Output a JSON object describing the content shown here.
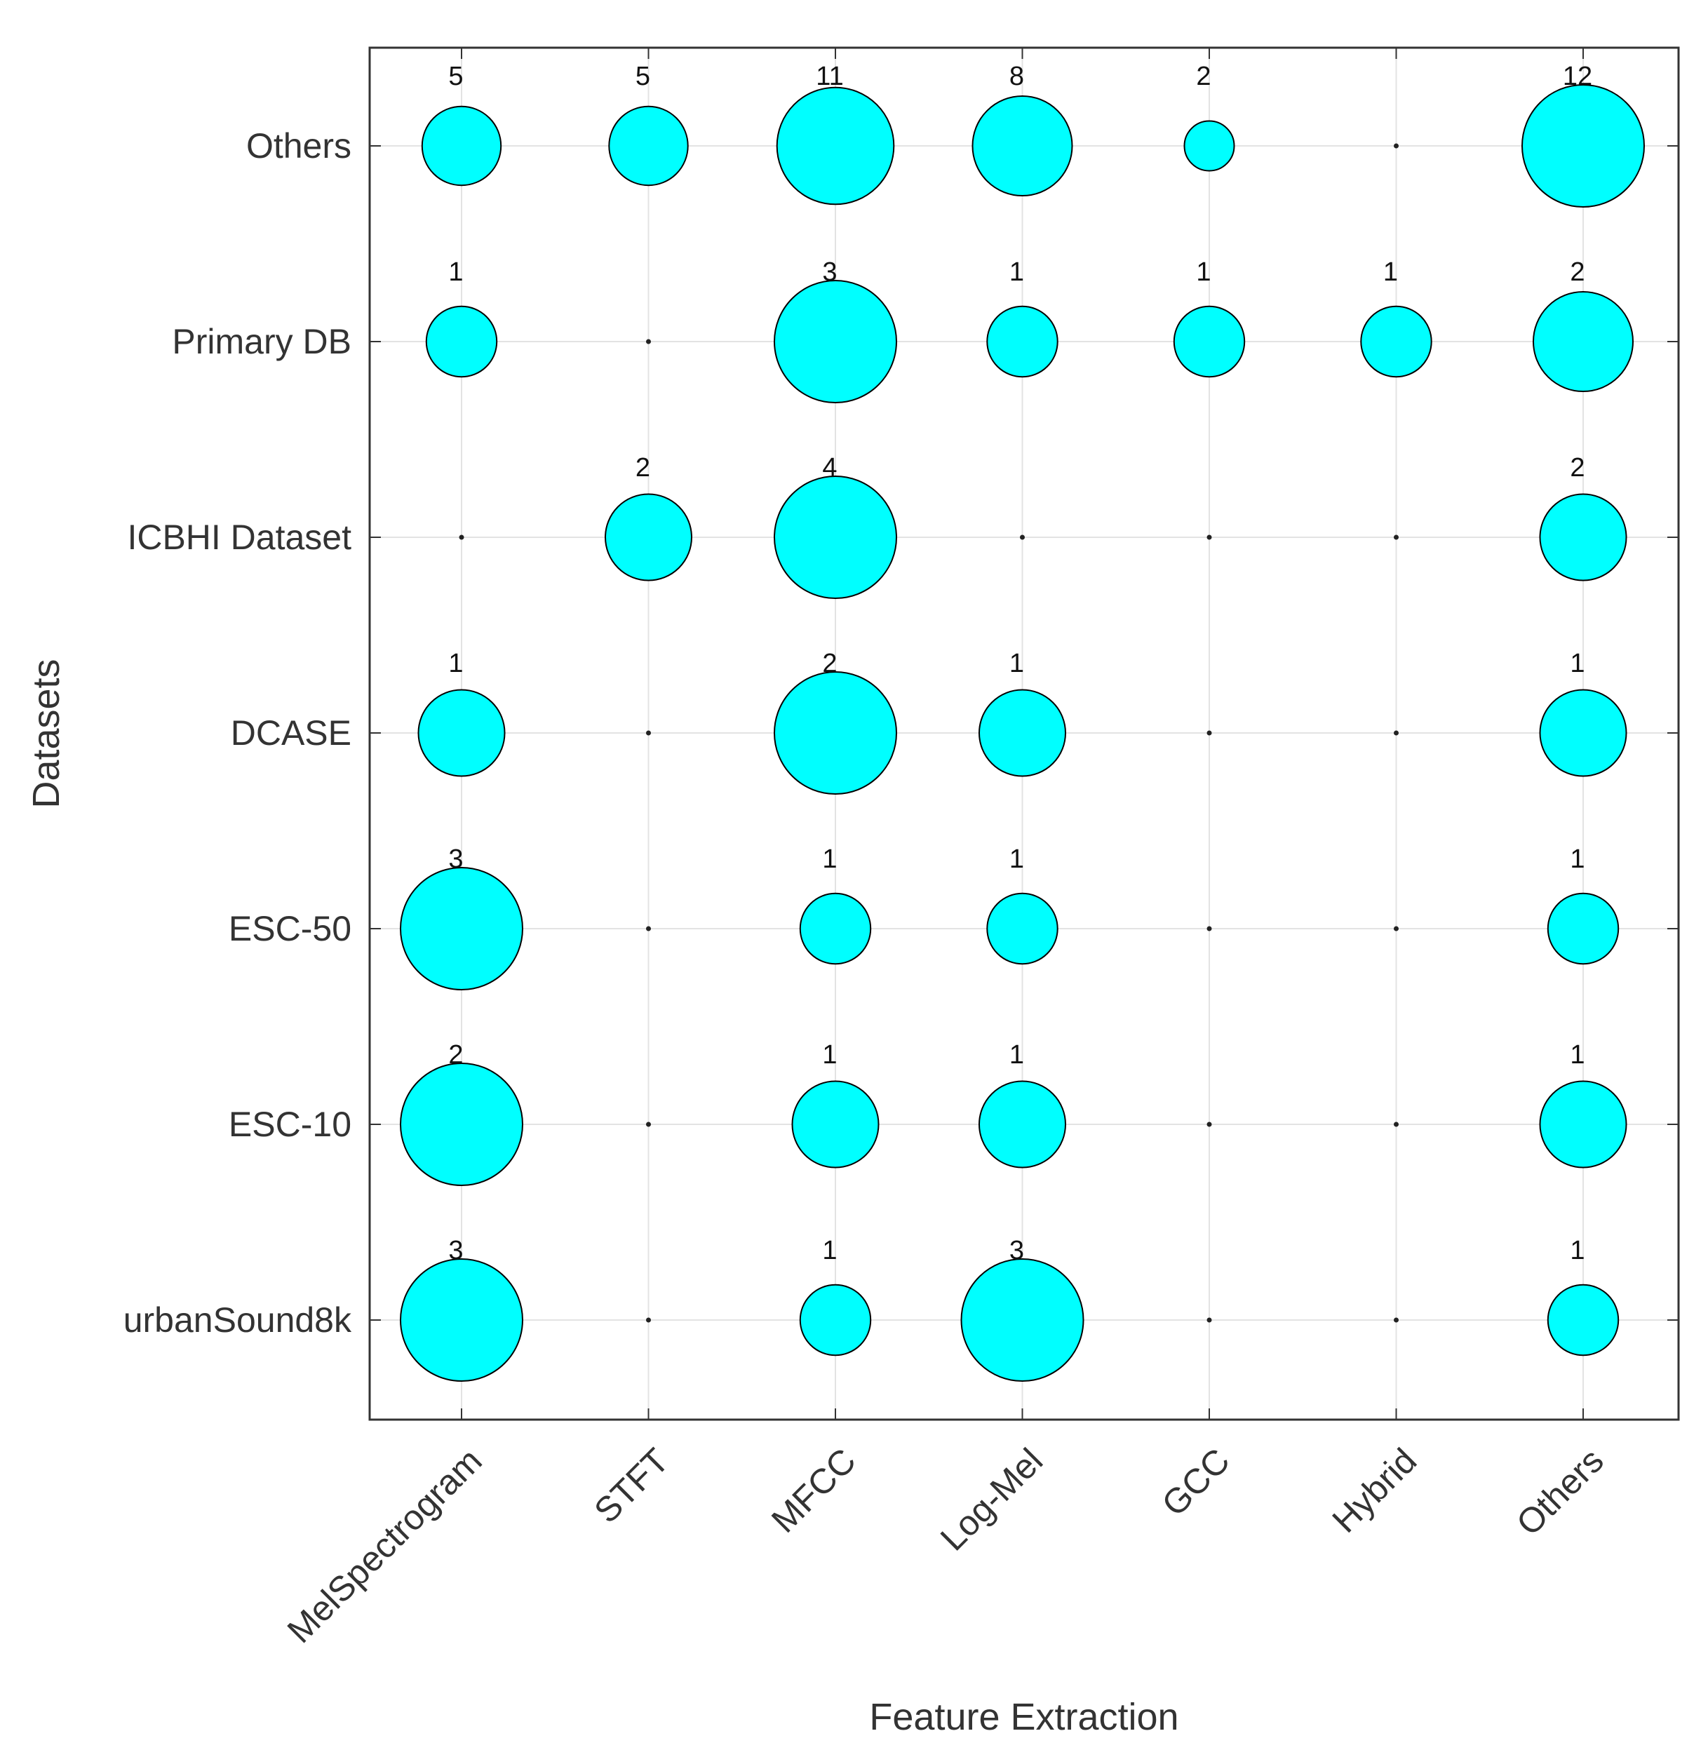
{
  "chart_data": {
    "type": "bubble",
    "xlabel": "Feature Extraction",
    "ylabel": "Datasets",
    "x_categories": [
      "MelSpectrogram",
      "STFT",
      "MFCC",
      "Log-Mel",
      "GCC",
      "Hybrid",
      "Others"
    ],
    "y_categories": [
      "urbanSound8k",
      "ESC-10",
      "ESC-50",
      "DCASE",
      "ICBHI Dataset",
      "Primary DB",
      "Others"
    ],
    "grid": true,
    "bubble_color": "#00ffff",
    "edge_color": "#000000",
    "rows": [
      {
        "dataset": "Others",
        "values": [
          5,
          5,
          11,
          8,
          2,
          0,
          12
        ]
      },
      {
        "dataset": "Primary DB",
        "values": [
          1,
          0,
          3,
          1,
          1,
          1,
          2
        ]
      },
      {
        "dataset": "ICBHI Dataset",
        "values": [
          0,
          2,
          4,
          0,
          0,
          0,
          2
        ]
      },
      {
        "dataset": "DCASE",
        "values": [
          1,
          0,
          2,
          1,
          0,
          0,
          1
        ]
      },
      {
        "dataset": "ESC-50",
        "values": [
          3,
          0,
          1,
          1,
          0,
          0,
          1
        ]
      },
      {
        "dataset": "ESC-10",
        "values": [
          2,
          0,
          1,
          1,
          0,
          0,
          1
        ]
      },
      {
        "dataset": "urbanSound8k",
        "values": [
          3,
          0,
          1,
          3,
          0,
          0,
          1
        ]
      }
    ]
  }
}
